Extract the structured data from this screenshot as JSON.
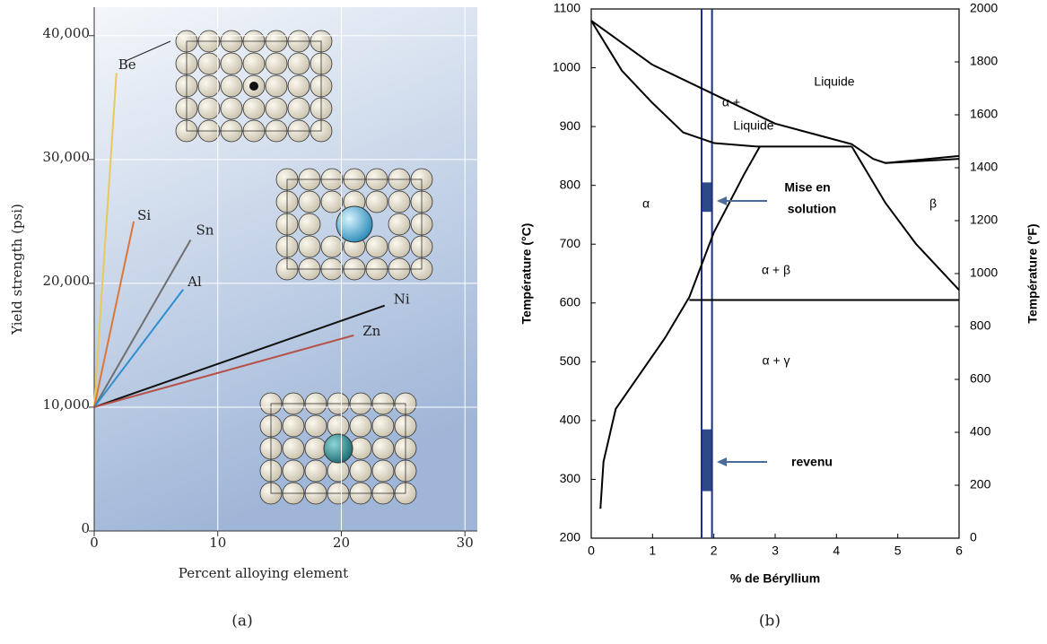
{
  "chart_data": [
    {
      "type": "line",
      "xlabel": "Percent alloying element",
      "ylabel": "Yield strength (psi)",
      "xlim": [
        0,
        31
      ],
      "ylim": [
        0,
        42300
      ],
      "xticks": [
        0,
        10,
        20,
        30
      ],
      "yticks": [
        0,
        {
          "value": 10000,
          "label": "10,000"
        },
        {
          "value": 20000,
          "label": "20,000"
        },
        {
          "value": 30000,
          "label": "30,000"
        },
        {
          "value": 40000,
          "label": "40,000"
        }
      ],
      "grid": true,
      "series": [
        {
          "name": "Be",
          "color": "#e8c95a",
          "x": [
            0,
            1.8
          ],
          "values": [
            10000,
            37000
          ]
        },
        {
          "name": "Si",
          "color": "#d9773a",
          "x": [
            0,
            3.2
          ],
          "values": [
            10000,
            25000
          ]
        },
        {
          "name": "Sn",
          "color": "#6f6f6f",
          "x": [
            0,
            7.8
          ],
          "values": [
            10000,
            23500
          ]
        },
        {
          "name": "Al",
          "color": "#2f8fd0",
          "x": [
            0,
            7.2
          ],
          "values": [
            10000,
            19500
          ]
        },
        {
          "name": "Ni",
          "color": "#111111",
          "x": [
            0,
            23.5
          ],
          "values": [
            10000,
            18200
          ]
        },
        {
          "name": "Zn",
          "color": "#b5524a",
          "x": [
            0,
            21
          ],
          "values": [
            10000,
            15800
          ]
        }
      ]
    },
    {
      "type": "line",
      "xlabel": "% de Béryllium",
      "ylabel": "Température (°C)",
      "y2label": "Température (°F)",
      "xlim": [
        0,
        6
      ],
      "ylim": [
        200,
        1100
      ],
      "y2lim": [
        0,
        2000
      ],
      "xticks": [
        0,
        1,
        2,
        3,
        4,
        5,
        6
      ],
      "yticks": [
        200,
        300,
        400,
        500,
        600,
        700,
        800,
        900,
        1000,
        1100
      ],
      "y2ticks": [
        0,
        200,
        400,
        600,
        800,
        1000,
        1200,
        1400,
        1600,
        1800,
        2000
      ],
      "series": [
        {
          "color": "#000000",
          "x": [
            0,
            1,
            2,
            3,
            4.25,
            4.6,
            4.8,
            6
          ],
          "values": [
            1080,
            1005,
            955,
            905,
            870,
            845,
            838,
            850
          ]
        },
        {
          "color": "#000000",
          "x": [
            0,
            0.5,
            1,
            1.5,
            2,
            2.7
          ],
          "values": [
            1080,
            995,
            940,
            890,
            872,
            866
          ]
        },
        {
          "color": "#000000",
          "x": [
            2.7,
            4.25
          ],
          "values": [
            866,
            866
          ]
        },
        {
          "color": "#000000",
          "x": [
            0.15,
            0.2,
            0.4,
            0.8,
            1.2,
            1.6,
            2,
            2.5,
            2.75
          ],
          "values": [
            250,
            330,
            420,
            480,
            540,
            610,
            720,
            820,
            866
          ]
        },
        {
          "color": "#000000",
          "x": [
            4.25,
            4.8,
            5.3,
            6
          ],
          "values": [
            866,
            770,
            700,
            622
          ]
        },
        {
          "color": "#000000",
          "x": [
            1.6,
            6
          ],
          "values": [
            605,
            605
          ]
        },
        {
          "color": "#000000",
          "x": [
            4.8,
            6
          ],
          "values": [
            838,
            845
          ]
        }
      ],
      "vlines": [
        1.8,
        1.97
      ],
      "vline_color": "#1f2e8c",
      "bands": [
        {
          "x": [
            1.8,
            1.97
          ],
          "y": [
            755,
            805
          ]
        },
        {
          "x": [
            1.8,
            1.97
          ],
          "y": [
            280,
            385
          ]
        }
      ],
      "band_color": "#2e4a86",
      "annotations": [
        "Liquide",
        "α +",
        "Liquide",
        "α",
        "β",
        "α + β",
        "α + γ",
        "Mise en",
        "solution",
        "revenu"
      ]
    }
  ],
  "captions": [
    "(a)",
    "(b)"
  ]
}
